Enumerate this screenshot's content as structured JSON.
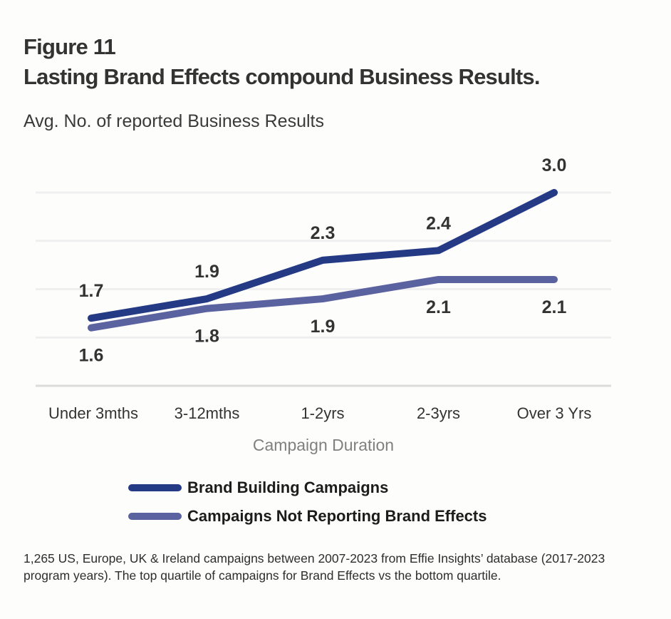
{
  "figure": {
    "label": "Figure 11",
    "title": "Lasting Brand Effects compound Business Results.",
    "footnote": "1,265 US, Europe, UK & Ireland campaigns between 2007-2023 from Effie Insights’ database  (2017-2023 program years). The top quartile of campaigns for Brand Effects vs the bottom quartile."
  },
  "chart_data": {
    "type": "line",
    "title": "Lasting Brand Effects compound Business Results.",
    "ylabel": "Avg. No. of reported Business Results",
    "xlabel": "Campaign Duration",
    "categories": [
      "Under 3mths",
      "3-12mths",
      "1-2yrs",
      "2-3yrs",
      "Over 3 Yrs"
    ],
    "ylim": [
      1.0,
      3.0
    ],
    "gridlines": [
      1.0,
      1.5,
      2.0,
      2.5,
      3.0
    ],
    "grid": true,
    "legend_position": "bottom-center",
    "series": [
      {
        "name": "Brand Building Campaigns",
        "color": "#243a84",
        "label_position": "above",
        "values": [
          1.7,
          1.9,
          2.3,
          2.4,
          3.0
        ]
      },
      {
        "name": "Campaigns Not Reporting Brand Effects",
        "color": "#5b62a0",
        "label_position": "below",
        "values": [
          1.6,
          1.8,
          1.9,
          2.1,
          2.1
        ]
      }
    ]
  }
}
